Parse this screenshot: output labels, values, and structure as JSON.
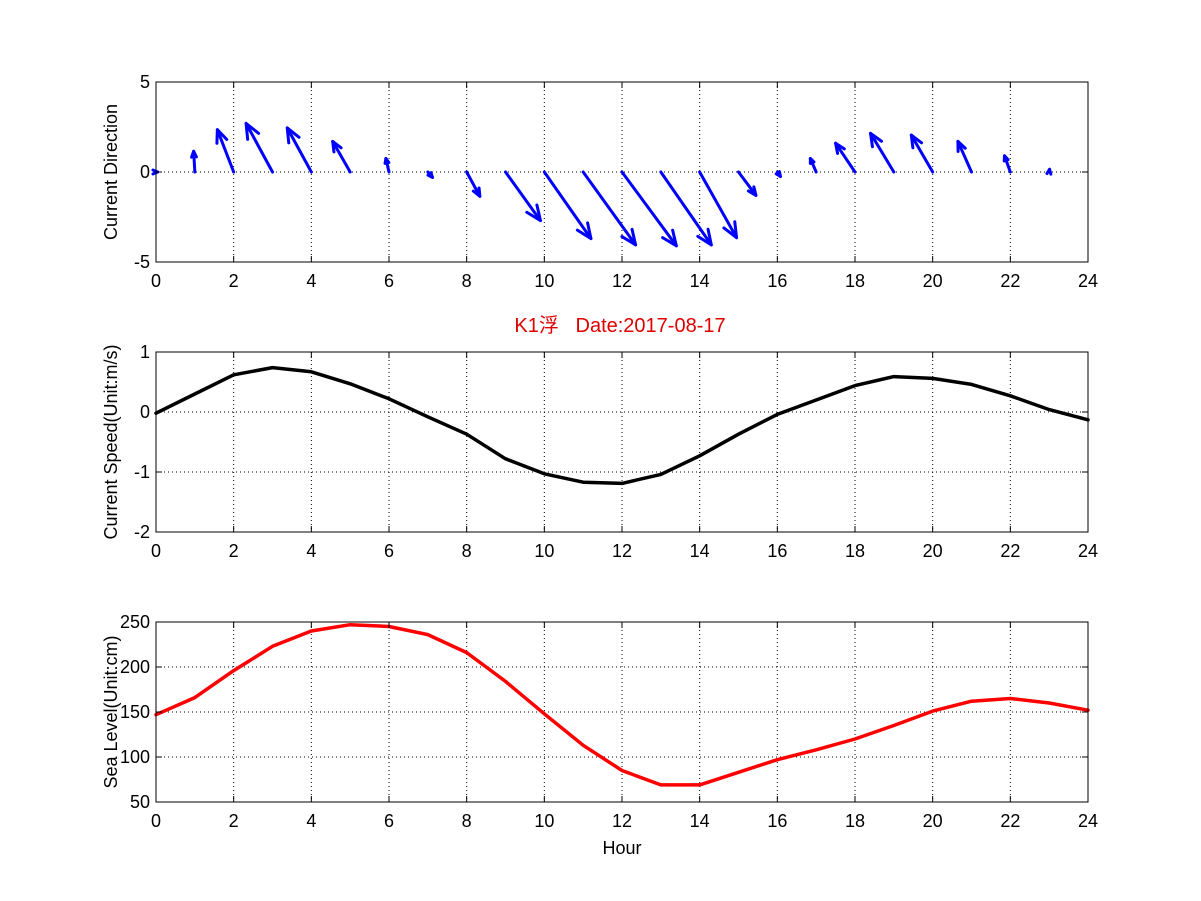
{
  "figure_title": "K1浮   Date:2017-08-17",
  "colors": {
    "direction": "#0000ff",
    "speed": "#000000",
    "sea_level": "#ff0000",
    "title": "#e00000",
    "axis": "#000000",
    "grid": "#000000"
  },
  "chart_data": [
    {
      "type": "quiver",
      "name": "direction",
      "ylabel": "Current Direction",
      "xlabel": "",
      "xlim": [
        0,
        24
      ],
      "ylim": [
        -5,
        5
      ],
      "xticks": [
        0,
        2,
        4,
        6,
        8,
        10,
        12,
        14,
        16,
        18,
        20,
        22,
        24
      ],
      "yticks": [
        -5,
        0,
        5
      ],
      "grid": true,
      "x": [
        0,
        1,
        2,
        3,
        4,
        5,
        6,
        7,
        8,
        9,
        10,
        11,
        12,
        13,
        14,
        15,
        16,
        17,
        18,
        19,
        20,
        21,
        22,
        23
      ],
      "u": [
        0.04,
        -0.03,
        -0.42,
        -0.68,
        -0.62,
        -0.45,
        -0.08,
        0.12,
        0.34,
        0.9,
        1.2,
        1.35,
        1.4,
        1.3,
        0.95,
        0.45,
        0.08,
        -0.15,
        -0.5,
        -0.6,
        -0.55,
        -0.35,
        -0.15,
        0.01
      ],
      "v": [
        0,
        1.15,
        2.35,
        2.7,
        2.45,
        1.7,
        0.75,
        -0.3,
        -1.35,
        -2.7,
        -3.7,
        -4.05,
        -4.1,
        -4.05,
        -3.65,
        -1.3,
        -0.25,
        0.75,
        1.6,
        2.15,
        2.05,
        1.7,
        0.9,
        0.15
      ]
    },
    {
      "type": "line",
      "name": "speed",
      "ylabel": "Current Speed(Unit:m/s)",
      "xlabel": "",
      "xlim": [
        0,
        24
      ],
      "ylim": [
        -2,
        1
      ],
      "xticks": [
        0,
        2,
        4,
        6,
        8,
        10,
        12,
        14,
        16,
        18,
        20,
        22,
        24
      ],
      "yticks": [
        -2,
        -1,
        0,
        1
      ],
      "grid": true,
      "x": [
        0,
        1,
        2,
        3,
        4,
        5,
        6,
        7,
        8,
        9,
        10,
        11,
        12,
        13,
        14,
        15,
        16,
        17,
        18,
        19,
        20,
        21,
        22,
        23,
        24
      ],
      "values": [
        -0.02,
        0.3,
        0.62,
        0.74,
        0.67,
        0.47,
        0.22,
        -0.08,
        -0.37,
        -0.78,
        -1.03,
        -1.17,
        -1.19,
        -1.04,
        -0.73,
        -0.37,
        -0.04,
        0.2,
        0.44,
        0.59,
        0.56,
        0.46,
        0.27,
        0.04,
        -0.13
      ]
    },
    {
      "type": "line",
      "name": "sea_level",
      "ylabel": "Sea Level(Unit:cm)",
      "xlabel": "Hour",
      "xlim": [
        0,
        24
      ],
      "ylim": [
        50,
        250
      ],
      "xticks": [
        0,
        2,
        4,
        6,
        8,
        10,
        12,
        14,
        16,
        18,
        20,
        22,
        24
      ],
      "yticks": [
        50,
        100,
        150,
        200,
        250
      ],
      "grid": true,
      "x": [
        0,
        1,
        2,
        3,
        4,
        5,
        6,
        7,
        8,
        9,
        10,
        11,
        12,
        13,
        14,
        15,
        16,
        17,
        18,
        19,
        20,
        21,
        22,
        23,
        24
      ],
      "values": [
        147,
        166,
        196,
        223,
        240,
        247,
        245,
        236,
        216,
        184,
        148,
        113,
        85,
        69,
        69,
        83,
        97,
        108,
        120,
        135,
        151,
        162,
        165,
        160,
        152
      ]
    }
  ]
}
